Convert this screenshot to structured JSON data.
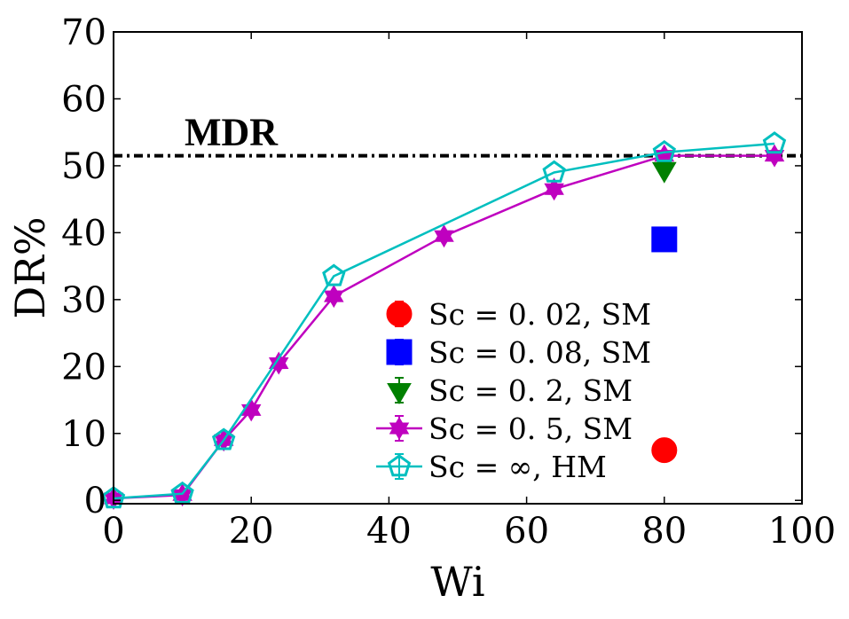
{
  "chart_data": {
    "type": "line",
    "xlabel": "Wi",
    "ylabel": "DR%",
    "xlim": [
      0,
      100
    ],
    "ylim": [
      -0.5,
      70
    ],
    "xticks": [
      "0",
      "20",
      "40",
      "60",
      "80",
      "100"
    ],
    "yticks": [
      "0",
      "10",
      "20",
      "30",
      "40",
      "50",
      "60",
      "70"
    ],
    "grid": false,
    "legend_position": "lower-center",
    "reference_line": {
      "label": "MDR",
      "y": 51.5,
      "color": "#000000"
    },
    "series": [
      {
        "name": "Sc = 0. 02, SM",
        "color": "#ff0000",
        "marker": "circle",
        "line": false,
        "x": [
          80
        ],
        "y": [
          7.5
        ]
      },
      {
        "name": "Sc = 0. 08, SM",
        "color": "#0000ff",
        "marker": "square",
        "line": false,
        "x": [
          80
        ],
        "y": [
          39
        ]
      },
      {
        "name": "Sc = 0. 2, SM",
        "color": "#008000",
        "marker": "triangle-down",
        "line": false,
        "x": [
          80
        ],
        "y": [
          49.5
        ]
      },
      {
        "name": "Sc = 0. 5, SM",
        "color": "#bf00bf",
        "marker": "star",
        "line": true,
        "x": [
          0,
          10,
          16,
          20,
          24,
          32,
          48,
          64,
          80,
          96
        ],
        "y": [
          0.3,
          0.8,
          9,
          13.5,
          20.5,
          30.5,
          39.5,
          46.5,
          51.5,
          51.5
        ]
      },
      {
        "name": "Sc = ∞, HM",
        "color": "#00bfbf",
        "marker": "pentagon",
        "line": true,
        "x": [
          0,
          10,
          16,
          32,
          64,
          80,
          96
        ],
        "y": [
          0.3,
          1,
          9,
          33.5,
          49,
          52,
          53.3
        ]
      }
    ]
  }
}
